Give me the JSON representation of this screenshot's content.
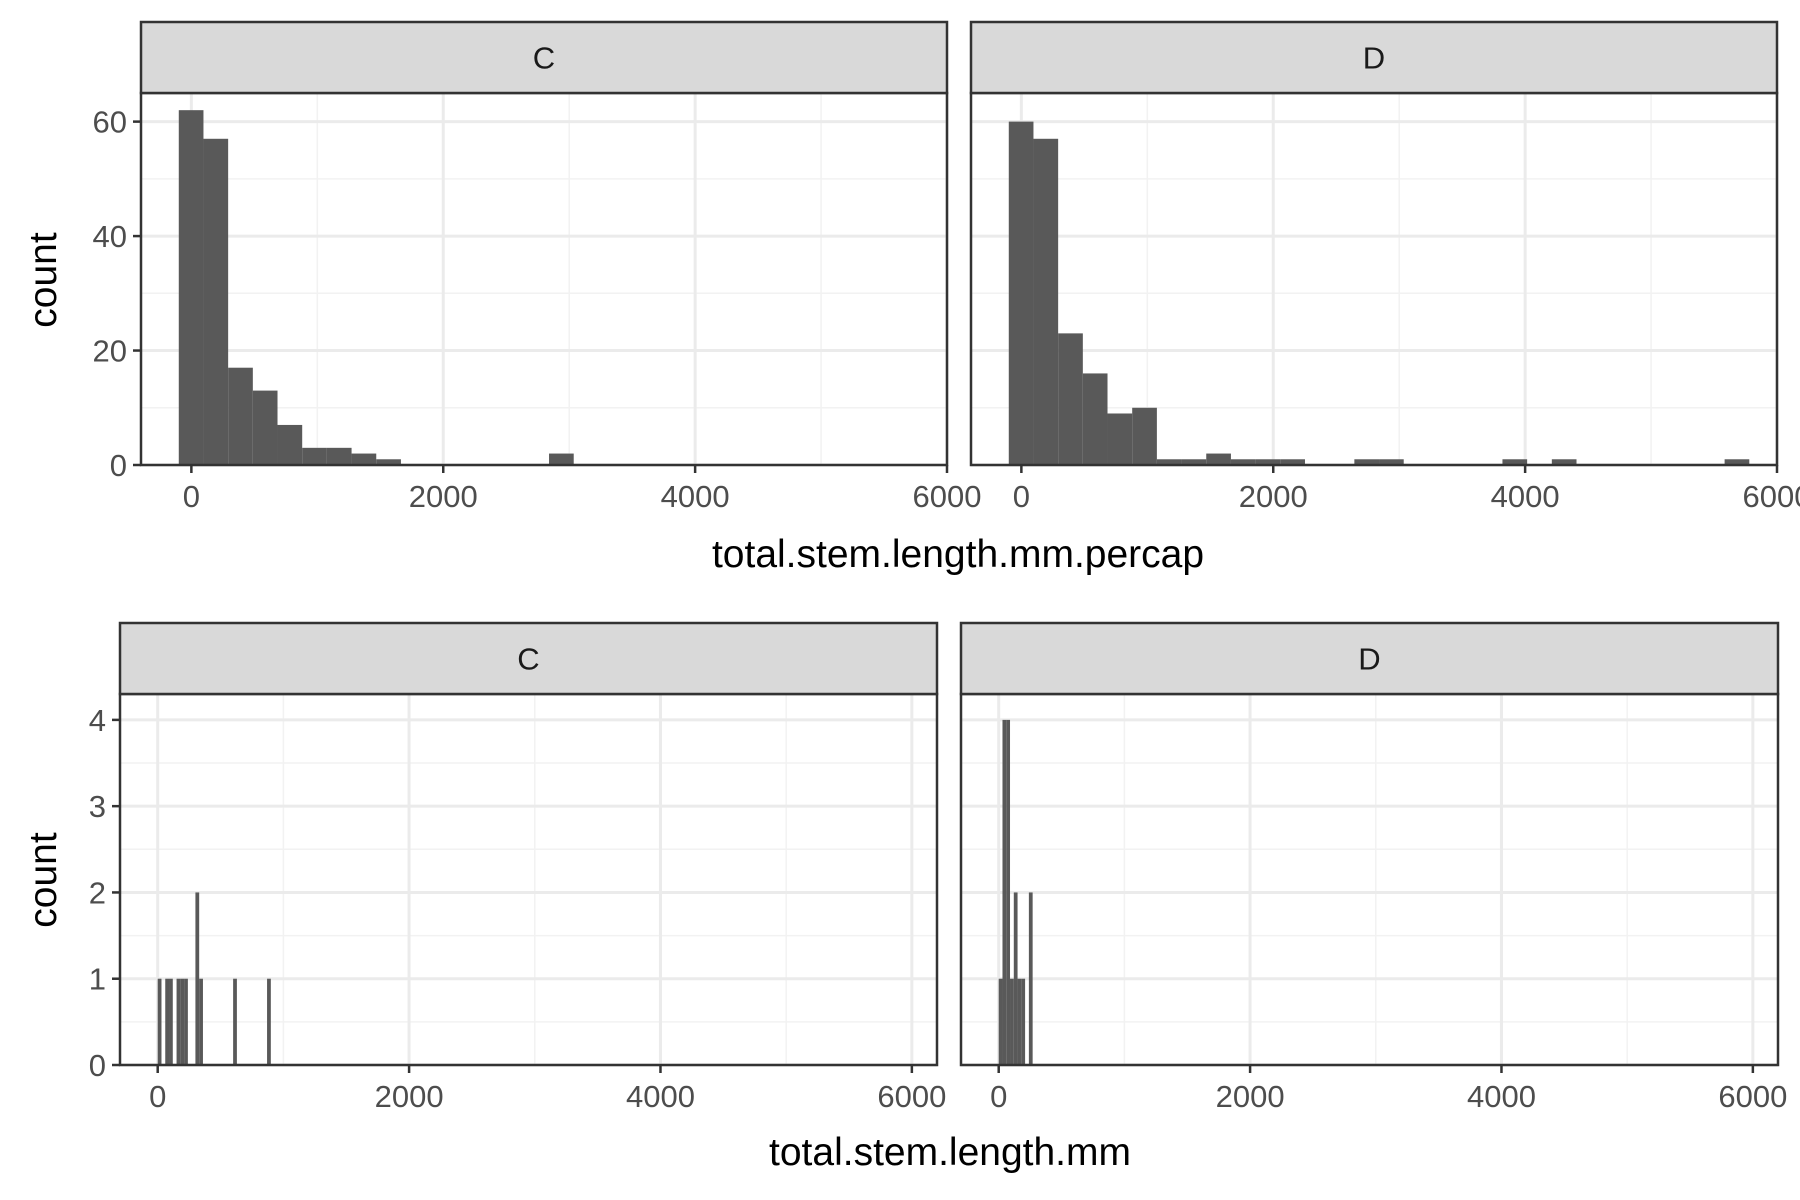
{
  "colors": {
    "bar_fill": "#595959",
    "panel_background": "#ffffff",
    "panel_border": "#333333",
    "strip_fill": "#d9d9d9",
    "grid_major": "#ebebeb",
    "grid_minor": "#f2f2f2"
  },
  "chart_data": [
    {
      "type": "bar",
      "subtype": "histogram",
      "facet_by": [
        "C",
        "D"
      ],
      "xlabel": "total.stem.length.mm.percap",
      "ylabel": "count",
      "xlim": [
        -400,
        6000
      ],
      "ylim": [
        0,
        65
      ],
      "x_ticks": [
        0,
        2000,
        4000,
        6000
      ],
      "y_ticks": [
        0,
        20,
        40,
        60
      ],
      "x_tick_labels": [
        "0",
        "2000",
        "4000",
        "6000"
      ],
      "y_tick_labels": [
        "0",
        "20",
        "40",
        "60"
      ],
      "bin_width": 196,
      "grid": true,
      "panels": [
        {
          "facet": "C",
          "bins": [
            {
              "x0": -100,
              "x1": 96,
              "count": 62
            },
            {
              "x0": 96,
              "x1": 292,
              "count": 57
            },
            {
              "x0": 292,
              "x1": 488,
              "count": 17
            },
            {
              "x0": 488,
              "x1": 684,
              "count": 13
            },
            {
              "x0": 684,
              "x1": 880,
              "count": 7
            },
            {
              "x0": 880,
              "x1": 1076,
              "count": 3
            },
            {
              "x0": 1076,
              "x1": 1272,
              "count": 3
            },
            {
              "x0": 1272,
              "x1": 1468,
              "count": 2
            },
            {
              "x0": 1468,
              "x1": 1664,
              "count": 1
            },
            {
              "x0": 2840,
              "x1": 3036,
              "count": 2
            }
          ]
        },
        {
          "facet": "D",
          "bins": [
            {
              "x0": -100,
              "x1": 96,
              "count": 60
            },
            {
              "x0": 96,
              "x1": 292,
              "count": 57
            },
            {
              "x0": 292,
              "x1": 488,
              "count": 23
            },
            {
              "x0": 488,
              "x1": 684,
              "count": 16
            },
            {
              "x0": 684,
              "x1": 880,
              "count": 9
            },
            {
              "x0": 880,
              "x1": 1076,
              "count": 10
            },
            {
              "x0": 1076,
              "x1": 1272,
              "count": 1
            },
            {
              "x0": 1272,
              "x1": 1468,
              "count": 1
            },
            {
              "x0": 1468,
              "x1": 1664,
              "count": 2
            },
            {
              "x0": 1664,
              "x1": 1860,
              "count": 1
            },
            {
              "x0": 1860,
              "x1": 2056,
              "count": 1
            },
            {
              "x0": 2056,
              "x1": 2252,
              "count": 1
            },
            {
              "x0": 2644,
              "x1": 2840,
              "count": 1
            },
            {
              "x0": 2840,
              "x1": 3036,
              "count": 1
            },
            {
              "x0": 3820,
              "x1": 4016,
              "count": 1
            },
            {
              "x0": 4212,
              "x1": 4408,
              "count": 1
            },
            {
              "x0": 5584,
              "x1": 5780,
              "count": 1
            }
          ]
        }
      ]
    },
    {
      "type": "bar",
      "subtype": "histogram",
      "facet_by": [
        "C",
        "D"
      ],
      "xlabel": "total.stem.length.mm",
      "ylabel": "count",
      "xlim": [
        -300,
        6200
      ],
      "ylim": [
        0,
        4.3
      ],
      "x_ticks": [
        0,
        2000,
        4000,
        6000
      ],
      "y_ticks": [
        0,
        1,
        2,
        3,
        4
      ],
      "x_tick_labels": [
        "0",
        "2000",
        "4000",
        "6000"
      ],
      "y_tick_labels": [
        "0",
        "1",
        "2",
        "3",
        "4"
      ],
      "bin_width": 30,
      "grid": true,
      "panels": [
        {
          "facet": "C",
          "bins": [
            {
              "x0": 0,
              "x1": 30,
              "count": 1
            },
            {
              "x0": 60,
              "x1": 90,
              "count": 1
            },
            {
              "x0": 90,
              "x1": 120,
              "count": 1
            },
            {
              "x0": 150,
              "x1": 180,
              "count": 1
            },
            {
              "x0": 180,
              "x1": 210,
              "count": 1
            },
            {
              "x0": 210,
              "x1": 240,
              "count": 1
            },
            {
              "x0": 300,
              "x1": 330,
              "count": 2
            },
            {
              "x0": 330,
              "x1": 360,
              "count": 1
            },
            {
              "x0": 600,
              "x1": 630,
              "count": 1
            },
            {
              "x0": 870,
              "x1": 900,
              "count": 1
            }
          ]
        },
        {
          "facet": "D",
          "bins": [
            {
              "x0": 0,
              "x1": 30,
              "count": 1
            },
            {
              "x0": 30,
              "x1": 60,
              "count": 4
            },
            {
              "x0": 60,
              "x1": 90,
              "count": 4
            },
            {
              "x0": 90,
              "x1": 120,
              "count": 1
            },
            {
              "x0": 120,
              "x1": 150,
              "count": 2
            },
            {
              "x0": 150,
              "x1": 180,
              "count": 1
            },
            {
              "x0": 180,
              "x1": 210,
              "count": 1
            },
            {
              "x0": 240,
              "x1": 270,
              "count": 2
            }
          ]
        }
      ]
    }
  ]
}
